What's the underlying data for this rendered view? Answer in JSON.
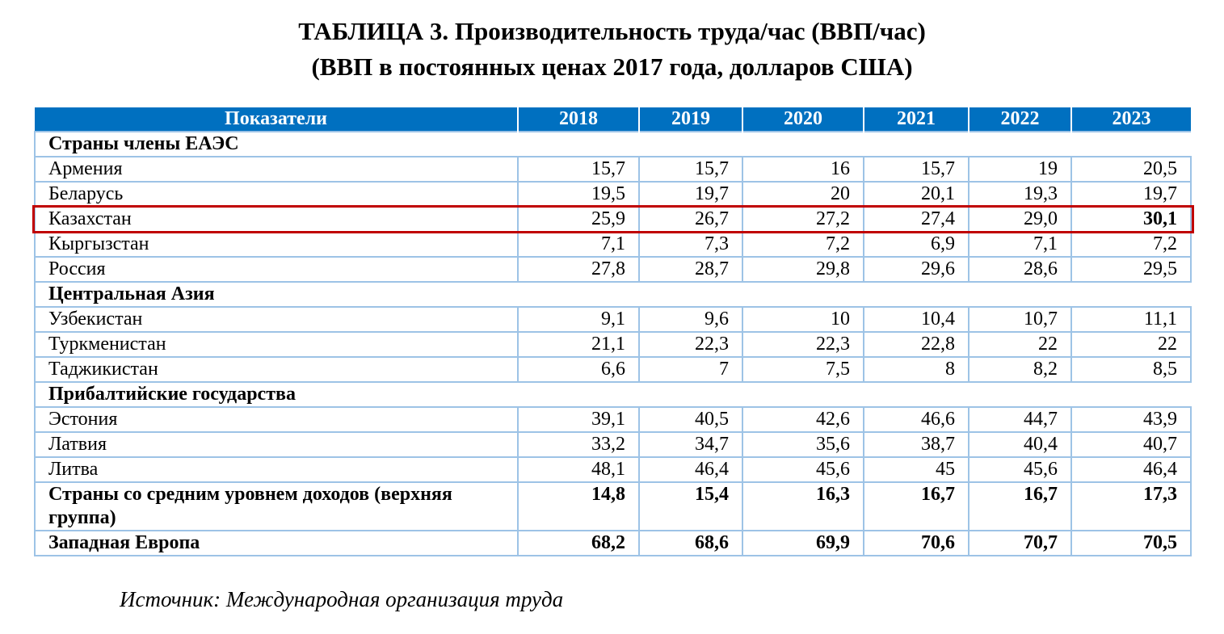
{
  "title_line1": "ТАБЛИЦА 3. Производительность труда/час (ВВП/час)",
  "title_line2": "(ВВП в постоянных ценах 2017 года, долларов США)",
  "table": {
    "headers": [
      "Показатели",
      "2018",
      "2019",
      "2020",
      "2021",
      "2022",
      "2023"
    ],
    "rows": [
      {
        "type": "section",
        "label": "Страны члены ЕАЭС"
      },
      {
        "type": "data",
        "label": "Армения",
        "values": [
          "15,7",
          "15,7",
          "16",
          "15,7",
          "19",
          "20,5"
        ]
      },
      {
        "type": "data",
        "label": "Беларусь",
        "values": [
          "19,5",
          "19,7",
          "20",
          "20,1",
          "19,3",
          "19,7"
        ]
      },
      {
        "type": "data",
        "label": "Казахстан",
        "values": [
          "25,9",
          "26,7",
          "27,2",
          "27,4",
          "29,0",
          "30,1"
        ],
        "highlighted": true
      },
      {
        "type": "data",
        "label": "Кыргызстан",
        "values": [
          "7,1",
          "7,3",
          "7,2",
          "6,9",
          "7,1",
          "7,2"
        ]
      },
      {
        "type": "data",
        "label": "Россия",
        "values": [
          "27,8",
          "28,7",
          "29,8",
          "29,6",
          "28,6",
          "29,5"
        ]
      },
      {
        "type": "section",
        "label": "Центральная Азия"
      },
      {
        "type": "data",
        "label": "Узбекистан",
        "values": [
          "9,1",
          "9,6",
          "10",
          "10,4",
          "10,7",
          "11,1"
        ]
      },
      {
        "type": "data",
        "label": "Туркменистан",
        "values": [
          "21,1",
          "22,3",
          "22,3",
          "22,8",
          "22",
          "22"
        ]
      },
      {
        "type": "data",
        "label": "Таджикистан",
        "values": [
          "6,6",
          "7",
          "7,5",
          "8",
          "8,2",
          "8,5"
        ]
      },
      {
        "type": "section",
        "label": "Прибалтийские государства"
      },
      {
        "type": "data",
        "label": "Эстония",
        "values": [
          "39,1",
          "40,5",
          "42,6",
          "46,6",
          "44,7",
          "43,9"
        ]
      },
      {
        "type": "data",
        "label": "Латвия",
        "values": [
          "33,2",
          "34,7",
          "35,6",
          "38,7",
          "40,4",
          "40,7"
        ]
      },
      {
        "type": "data",
        "label": "Литва",
        "values": [
          "48,1",
          "46,4",
          "45,6",
          "45",
          "45,6",
          "46,4"
        ]
      },
      {
        "type": "bold",
        "label": "Страны со средним уровнем доходов (верхняя группа)",
        "values": [
          "14,8",
          "15,4",
          "16,3",
          "16,7",
          "16,7",
          "17,3"
        ]
      },
      {
        "type": "bold",
        "label": "Западная Европа",
        "values": [
          "68,2",
          "68,6",
          "69,9",
          "70,6",
          "70,7",
          "70,5"
        ]
      }
    ]
  },
  "source": "Источник: Международная организация труда",
  "colors": {
    "header_bg": "#0070C0",
    "grid": "#9DC3E6",
    "highlight_border": "#C00000"
  }
}
